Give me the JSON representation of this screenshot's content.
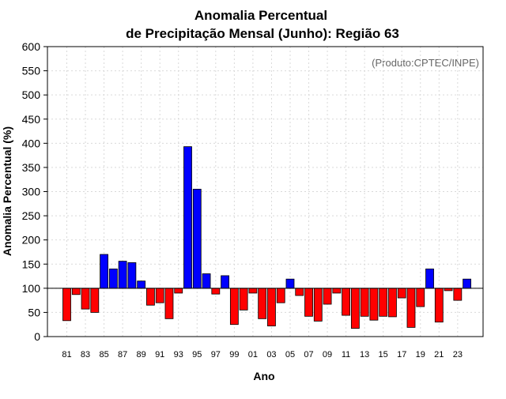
{
  "chart_data": {
    "type": "bar",
    "title_line1": "Anomalia Percentual",
    "title_line2": "de Precipitação Mensal (Junho): Região 63",
    "xlabel": "Ano",
    "ylabel": "Anomalia Percentual (%)",
    "credit": "(Produto:CPTEC/INPE)",
    "baseline": 100,
    "ylim": [
      0,
      600
    ],
    "yticks": [
      0,
      50,
      100,
      150,
      200,
      250,
      300,
      350,
      400,
      450,
      500,
      550,
      600
    ],
    "categories": [
      "81",
      "82",
      "83",
      "84",
      "85",
      "86",
      "87",
      "88",
      "89",
      "90",
      "91",
      "92",
      "93",
      "94",
      "95",
      "96",
      "97",
      "98",
      "99",
      "00",
      "01",
      "02",
      "03",
      "04",
      "05",
      "06",
      "07",
      "08",
      "09",
      "10",
      "11",
      "12",
      "13",
      "14",
      "15",
      "16",
      "17",
      "18",
      "19",
      "20",
      "21",
      "22",
      "23",
      "24"
    ],
    "xtick_labels": [
      "81",
      "83",
      "85",
      "87",
      "89",
      "91",
      "93",
      "95",
      "97",
      "99",
      "01",
      "03",
      "05",
      "07",
      "09",
      "11",
      "13",
      "15",
      "17",
      "19",
      "21",
      "23"
    ],
    "values": [
      33,
      87,
      57,
      50,
      170,
      140,
      156,
      153,
      115,
      65,
      70,
      37,
      90,
      393,
      305,
      130,
      88,
      126,
      25,
      55,
      90,
      37,
      22,
      70,
      119,
      85,
      42,
      32,
      67,
      90,
      44,
      17,
      42,
      34,
      42,
      41,
      80,
      19,
      62,
      140,
      30,
      95,
      75,
      119
    ],
    "colors": {
      "above": "#0000ff",
      "below": "#ff0000"
    }
  }
}
